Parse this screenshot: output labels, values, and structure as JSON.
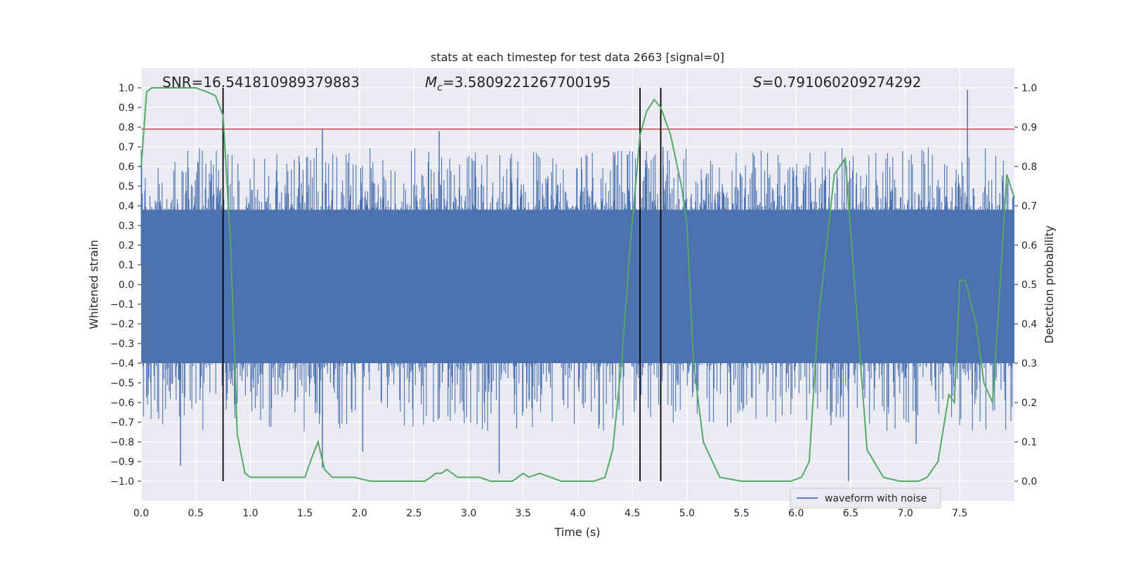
{
  "chart_data": {
    "type": "line",
    "title": "stats at each timestep for test data 2663 [signal=0]",
    "xlabel": "Time (s)",
    "ylabel": "Whitened strain",
    "y2label": "Detection probability",
    "xlim": [
      0.0,
      8.0
    ],
    "ylim": [
      -1.1,
      1.1
    ],
    "y2lim": [
      -0.05,
      1.05
    ],
    "xticks": [
      0.0,
      0.5,
      1.0,
      1.5,
      2.0,
      2.5,
      3.0,
      3.5,
      4.0,
      4.5,
      5.0,
      5.5,
      6.0,
      6.5,
      7.0,
      7.5
    ],
    "xtick_labels": [
      "0.0",
      "0.5",
      "1.0",
      "1.5",
      "2.0",
      "2.5",
      "3.0",
      "3.5",
      "4.0",
      "4.5",
      "5.0",
      "5.5",
      "6.0",
      "6.5",
      "7.0",
      "7.5"
    ],
    "yticks": [
      1.0,
      0.9,
      0.8,
      0.7,
      0.6,
      0.5,
      0.4,
      0.3,
      0.2,
      0.1,
      0.0,
      -0.1,
      -0.2,
      -0.3,
      -0.4,
      -0.5,
      -0.6,
      -0.7,
      -0.8,
      -0.9,
      -1.0
    ],
    "ytick_labels": [
      "1.0",
      "0.9",
      "0.8",
      "0.7",
      "0.6",
      "0.5",
      "0.4",
      "0.3",
      "0.2",
      "0.1",
      "0.0",
      "−0.1",
      "−0.2",
      "−0.3",
      "−0.4",
      "−0.5",
      "−0.6",
      "−0.7",
      "−0.8",
      "−0.9",
      "−1.0"
    ],
    "y2ticks": [
      1.0,
      0.9,
      0.8,
      0.7,
      0.6,
      0.5,
      0.4,
      0.3,
      0.2,
      0.1,
      0.0
    ],
    "y2tick_labels": [
      "1.0",
      "0.9",
      "0.8",
      "0.7",
      "0.6",
      "0.5",
      "0.4",
      "0.3",
      "0.2",
      "0.1",
      "0.0"
    ],
    "grid": true,
    "annotations": {
      "snr": "SNR=16.541810989379883",
      "mc_symbol": "M",
      "mc_sub": "c",
      "mc_value": "=3.5809221267700195",
      "s_symbol": "S",
      "s_value": "=0.791060209274292"
    },
    "threshold_y": 0.79,
    "vertical_lines_x": [
      0.75,
      4.57,
      4.76
    ],
    "series": [
      {
        "name": "waveform with noise",
        "axis": "left",
        "color": "#4c72b0",
        "style": "noise",
        "envelope": {
          "core_low": -0.4,
          "core_high": 0.38,
          "spike_low": -1.0,
          "spike_high": 0.97
        },
        "peaks": [
          {
            "x": 0.36,
            "y": -0.92
          },
          {
            "x": 1.66,
            "y": 0.79
          },
          {
            "x": 1.66,
            "y": -0.93
          },
          {
            "x": 2.03,
            "y": -0.85
          },
          {
            "x": 2.73,
            "y": 0.78
          },
          {
            "x": 3.28,
            "y": -0.96
          },
          {
            "x": 4.78,
            "y": 0.7
          },
          {
            "x": 6.48,
            "y": -1.0
          },
          {
            "x": 7.1,
            "y": -0.81
          },
          {
            "x": 7.57,
            "y": 0.99
          }
        ]
      },
      {
        "name": "detection probability",
        "axis": "right",
        "color": "#55a868",
        "style": "line",
        "x": [
          0.0,
          0.05,
          0.1,
          0.2,
          0.3,
          0.4,
          0.5,
          0.6,
          0.68,
          0.75,
          0.82,
          0.88,
          0.95,
          1.0,
          1.1,
          1.2,
          1.3,
          1.4,
          1.45,
          1.5,
          1.55,
          1.62,
          1.68,
          1.75,
          1.85,
          1.95,
          2.1,
          2.3,
          2.5,
          2.6,
          2.7,
          2.75,
          2.8,
          2.85,
          2.9,
          3.0,
          3.1,
          3.2,
          3.3,
          3.4,
          3.45,
          3.5,
          3.55,
          3.65,
          3.75,
          3.85,
          4.0,
          4.15,
          4.25,
          4.32,
          4.4,
          4.48,
          4.57,
          4.63,
          4.7,
          4.76,
          4.85,
          4.95,
          5.0,
          5.06,
          5.15,
          5.3,
          5.5,
          5.7,
          5.8,
          5.85,
          5.95,
          6.05,
          6.12,
          6.2,
          6.26,
          6.35,
          6.45,
          6.55,
          6.65,
          6.8,
          6.95,
          7.05,
          7.12,
          7.2,
          7.3,
          7.4,
          7.45,
          7.5,
          7.55,
          7.65,
          7.72,
          7.8,
          7.88,
          7.93,
          8.0
        ],
        "y": [
          0.8,
          0.99,
          1.0,
          1.0,
          1.0,
          1.0,
          1.0,
          0.99,
          0.98,
          0.93,
          0.6,
          0.12,
          0.02,
          0.01,
          0.01,
          0.01,
          0.01,
          0.01,
          0.01,
          0.01,
          0.05,
          0.1,
          0.03,
          0.01,
          0.01,
          0.01,
          0.0,
          0.0,
          0.0,
          0.0,
          0.02,
          0.02,
          0.03,
          0.02,
          0.01,
          0.01,
          0.01,
          0.0,
          0.0,
          0.0,
          0.01,
          0.02,
          0.01,
          0.02,
          0.01,
          0.0,
          0.0,
          0.0,
          0.01,
          0.08,
          0.3,
          0.6,
          0.88,
          0.94,
          0.97,
          0.95,
          0.88,
          0.75,
          0.65,
          0.3,
          0.1,
          0.01,
          0.0,
          0.0,
          0.0,
          0.0,
          0.0,
          0.01,
          0.05,
          0.4,
          0.55,
          0.78,
          0.82,
          0.45,
          0.08,
          0.01,
          0.0,
          0.0,
          0.0,
          0.01,
          0.05,
          0.22,
          0.2,
          0.51,
          0.51,
          0.4,
          0.25,
          0.2,
          0.55,
          0.78,
          0.72
        ]
      }
    ],
    "legend": {
      "label": "waveform with noise",
      "location": "lower-right"
    }
  }
}
